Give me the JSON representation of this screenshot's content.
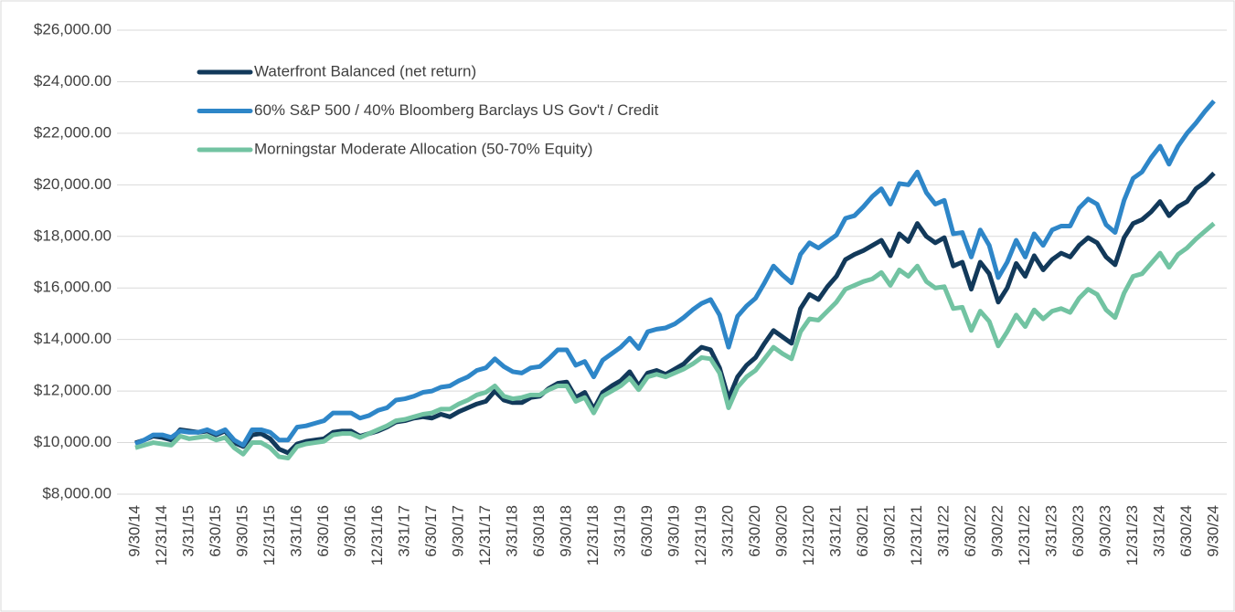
{
  "chart_data": {
    "type": "line",
    "categories": [
      "9/30/14",
      null,
      null,
      "12/31/14",
      null,
      null,
      "3/31/15",
      null,
      null,
      "6/30/15",
      null,
      null,
      "9/30/15",
      null,
      null,
      "12/31/15",
      null,
      null,
      "3/31/16",
      null,
      null,
      "6/30/16",
      null,
      null,
      "9/30/16",
      null,
      null,
      "12/31/16",
      null,
      null,
      "3/31/17",
      null,
      null,
      "6/30/17",
      null,
      null,
      "9/30/17",
      null,
      null,
      "12/31/17",
      null,
      null,
      "3/31/18",
      null,
      null,
      "6/30/18",
      null,
      null,
      "9/30/18",
      null,
      null,
      "12/31/18",
      null,
      null,
      "3/31/19",
      null,
      null,
      "6/30/19",
      null,
      null,
      "9/30/19",
      null,
      null,
      "12/31/19",
      null,
      null,
      "3/31/20",
      null,
      null,
      "6/30/20",
      null,
      null,
      "9/30/20",
      null,
      null,
      "12/31/20",
      null,
      null,
      "3/31/21",
      null,
      null,
      "6/30/21",
      null,
      null,
      "9/30/21",
      null,
      null,
      "12/31/21",
      null,
      null,
      "3/31/22",
      null,
      null,
      "6/30/22",
      null,
      null,
      "9/30/22",
      null,
      null,
      "12/31/22",
      null,
      null,
      "3/31/23",
      null,
      null,
      "6/30/23",
      null,
      null,
      "9/30/23",
      null,
      null,
      "12/31/23",
      null,
      null,
      "3/31/24",
      null,
      null,
      "6/30/24",
      null,
      null,
      "9/30/24"
    ],
    "series": [
      {
        "name": "Waterfront Balanced (net return)",
        "color": "#12395a",
        "values": [
          9990,
          10100,
          10250,
          10200,
          10100,
          10500,
          10450,
          10400,
          10450,
          10300,
          10450,
          10000,
          9850,
          10300,
          10350,
          10150,
          9750,
          9600,
          9950,
          10050,
          10100,
          10150,
          10400,
          10450,
          10450,
          10250,
          10350,
          10450,
          10600,
          10800,
          10850,
          10950,
          11000,
          10950,
          11100,
          11000,
          11200,
          11350,
          11500,
          11600,
          12000,
          11650,
          11550,
          11550,
          11750,
          11800,
          12100,
          12300,
          12350,
          11750,
          11950,
          11300,
          11950,
          12200,
          12400,
          12750,
          12200,
          12700,
          12800,
          12650,
          12850,
          13050,
          13400,
          13700,
          13600,
          12900,
          11700,
          12550,
          13000,
          13300,
          13850,
          14350,
          14100,
          13850,
          15200,
          15750,
          15550,
          16050,
          16450,
          17100,
          17300,
          17450,
          17650,
          17850,
          17250,
          18100,
          17800,
          18500,
          18000,
          17750,
          17950,
          16850,
          17000,
          15950,
          17000,
          16550,
          15450,
          16000,
          16950,
          16450,
          17250,
          16700,
          17100,
          17350,
          17200,
          17650,
          17950,
          17750,
          17200,
          16900,
          17950,
          18500,
          18650,
          18950,
          19350,
          18800,
          19150,
          19350,
          19850,
          20100,
          20450
        ]
      },
      {
        "name": "60% S&P 500 / 40% Bloomberg Barclays US Gov't / Credit",
        "color": "#2e86c8",
        "values": [
          9950,
          10100,
          10300,
          10300,
          10200,
          10450,
          10400,
          10400,
          10500,
          10350,
          10500,
          10100,
          9900,
          10500,
          10500,
          10400,
          10100,
          10100,
          10600,
          10650,
          10750,
          10850,
          11150,
          11150,
          11150,
          10950,
          11050,
          11250,
          11350,
          11650,
          11700,
          11800,
          11950,
          12000,
          12150,
          12200,
          12400,
          12550,
          12800,
          12900,
          13250,
          12950,
          12750,
          12700,
          12900,
          12950,
          13250,
          13600,
          13600,
          13000,
          13150,
          12550,
          13200,
          13450,
          13700,
          14050,
          13650,
          14300,
          14400,
          14450,
          14600,
          14850,
          15150,
          15400,
          15550,
          14950,
          13700,
          14900,
          15300,
          15600,
          16200,
          16850,
          16500,
          16200,
          17300,
          17750,
          17550,
          17800,
          18050,
          18700,
          18800,
          19150,
          19550,
          19850,
          19250,
          20050,
          20000,
          20500,
          19700,
          19250,
          19400,
          18100,
          18150,
          17200,
          18250,
          17650,
          16400,
          17000,
          17850,
          17200,
          18100,
          17650,
          18250,
          18400,
          18400,
          19100,
          19450,
          19250,
          18450,
          18150,
          19400,
          20250,
          20500,
          21050,
          21500,
          20800,
          21500,
          22000,
          22400,
          22850,
          23250
        ]
      },
      {
        "name": "Morningstar Moderate Allocation (50-70% Equity)",
        "color": "#72c3a2",
        "values": [
          9800,
          9900,
          10000,
          9950,
          9900,
          10250,
          10150,
          10200,
          10250,
          10100,
          10200,
          9800,
          9550,
          10000,
          10000,
          9800,
          9450,
          9400,
          9850,
          9950,
          10000,
          10050,
          10300,
          10350,
          10350,
          10200,
          10350,
          10500,
          10650,
          10850,
          10900,
          11000,
          11100,
          11150,
          11300,
          11300,
          11500,
          11650,
          11850,
          11950,
          12200,
          11800,
          11700,
          11750,
          11850,
          11850,
          12050,
          12200,
          12200,
          11600,
          11750,
          11150,
          11800,
          12000,
          12200,
          12500,
          12050,
          12550,
          12650,
          12550,
          12700,
          12850,
          13050,
          13300,
          13250,
          12700,
          11350,
          12150,
          12550,
          12800,
          13250,
          13700,
          13450,
          13250,
          14300,
          14800,
          14750,
          15100,
          15450,
          15950,
          16100,
          16250,
          16350,
          16600,
          16100,
          16700,
          16450,
          16850,
          16250,
          16000,
          16050,
          15200,
          15250,
          14350,
          15100,
          14700,
          13750,
          14300,
          14950,
          14500,
          15150,
          14800,
          15100,
          15200,
          15050,
          15600,
          15950,
          15750,
          15150,
          14850,
          15800,
          16450,
          16550,
          16950,
          17350,
          16800,
          17300,
          17550,
          17900,
          18200,
          18500
        ]
      }
    ],
    "ylim": [
      8000,
      26000
    ],
    "yticks": [
      {
        "value": 8000,
        "label": "$8,000.00"
      },
      {
        "value": 10000,
        "label": "$10,000.00"
      },
      {
        "value": 12000,
        "label": "$12,000.00"
      },
      {
        "value": 14000,
        "label": "$14,000.00"
      },
      {
        "value": 16000,
        "label": "$16,000.00"
      },
      {
        "value": 18000,
        "label": "$18,000.00"
      },
      {
        "value": 20000,
        "label": "$20,000.00"
      },
      {
        "value": 22000,
        "label": "$22,000.00"
      },
      {
        "value": 24000,
        "label": "$24,000.00"
      },
      {
        "value": 26000,
        "label": "$26,000.00"
      }
    ],
    "grid": true,
    "legend": "upper-left"
  }
}
